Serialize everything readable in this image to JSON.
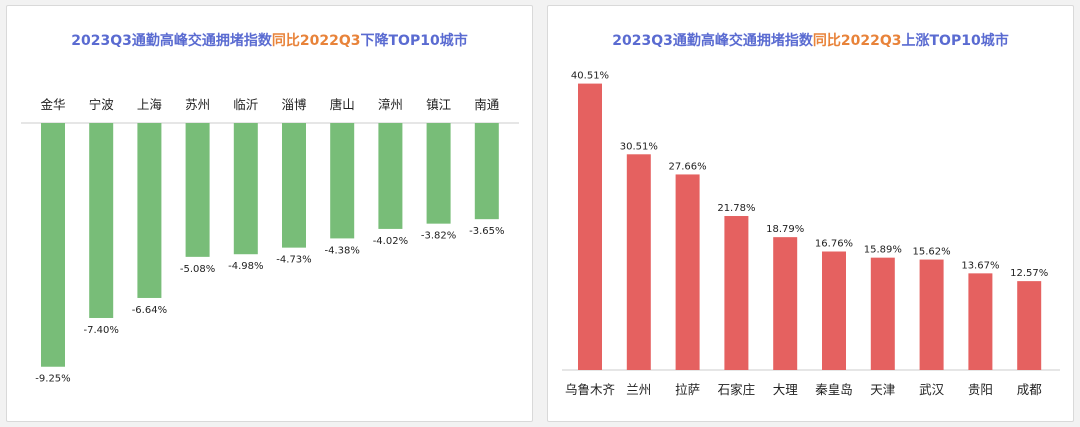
{
  "colors": {
    "title_blue": "#5a6bd1",
    "title_orange": "#e8833a",
    "bar_green": "#78bd78",
    "bar_red": "#e56160",
    "axis": "#cccccc",
    "text": "#222222"
  },
  "charts": {
    "left": {
      "title_part1": "2023Q3通勤高峰交通拥堵指数",
      "title_part2": "同比2022Q3",
      "title_part3": "下降TOP10城市"
    },
    "right": {
      "title_part1": "2023Q3通勤高峰交通拥堵指数",
      "title_part2": "同比2022Q3",
      "title_part3": "上涨TOP10城市"
    }
  },
  "chart_data": [
    {
      "type": "bar",
      "title": "2023Q3通勤高峰交通拥堵指数同比2022Q3下降TOP10城市",
      "categories": [
        "金华",
        "宁波",
        "上海",
        "苏州",
        "临沂",
        "淄博",
        "唐山",
        "漳州",
        "镇江",
        "南通"
      ],
      "values": [
        -9.25,
        -7.4,
        -6.64,
        -5.08,
        -4.98,
        -4.73,
        -4.38,
        -4.02,
        -3.82,
        -3.65
      ],
      "labels": [
        "-9.25%",
        "-7.40%",
        "-6.64%",
        "-5.08%",
        "-4.98%",
        "-4.73%",
        "-4.38%",
        "-4.02%",
        "-3.82%",
        "-3.65%"
      ],
      "ylim": [
        -10,
        0
      ],
      "grid": false
    },
    {
      "type": "bar",
      "title": "2023Q3通勤高峰交通拥堵指数同比2022Q3上涨TOP10城市",
      "categories": [
        "乌鲁木齐",
        "兰州",
        "拉萨",
        "石家庄",
        "大理",
        "秦皇岛",
        "天津",
        "武汉",
        "贵阳",
        "成都"
      ],
      "values": [
        40.51,
        30.51,
        27.66,
        21.78,
        18.79,
        16.76,
        15.89,
        15.62,
        13.67,
        12.57
      ],
      "labels": [
        "40.51%",
        "30.51%",
        "27.66%",
        "21.78%",
        "18.79%",
        "16.76%",
        "15.89%",
        "15.62%",
        "13.67%",
        "12.57%"
      ],
      "ylim": [
        0,
        42
      ],
      "grid": false
    }
  ]
}
